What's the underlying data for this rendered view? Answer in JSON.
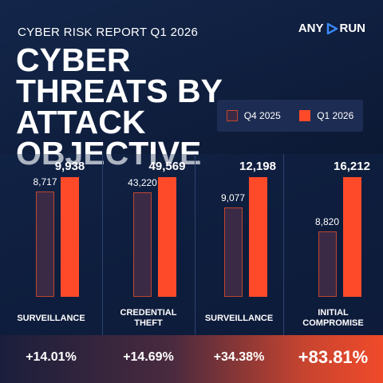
{
  "chart_data": {
    "type": "bar",
    "subtitle": "CYBER RISK REPORT Q1 2026",
    "logo": [
      "ANY",
      "RUN"
    ],
    "title": "CYBER THREATS BY ATTACK OBJECTIVE",
    "categories": [
      "SURVEILLANCE",
      "CREDENTIAL THEFT",
      "SURVEILLANCE",
      "INITIAL COMPROMISE"
    ],
    "series": [
      {
        "name": "Q4 2025",
        "color": "#3b2a45",
        "values": [
          8717,
          43220,
          9077,
          8820
        ],
        "value_labels": [
          "8,717",
          "43,220",
          "9,077",
          "8,820"
        ]
      },
      {
        "name": "Q1 2026",
        "color": "#ff4a2a",
        "values": [
          9938,
          49569,
          12198,
          16212
        ],
        "value_labels": [
          "9,938",
          "49,569",
          "12,198",
          "16,212"
        ]
      }
    ],
    "changes": {
      "values": [
        14.01,
        14.69,
        34.38,
        83.81
      ],
      "value_labels": [
        "+14.01%",
        "+14.69%",
        "+34.38%",
        "+83.81%"
      ]
    }
  }
}
